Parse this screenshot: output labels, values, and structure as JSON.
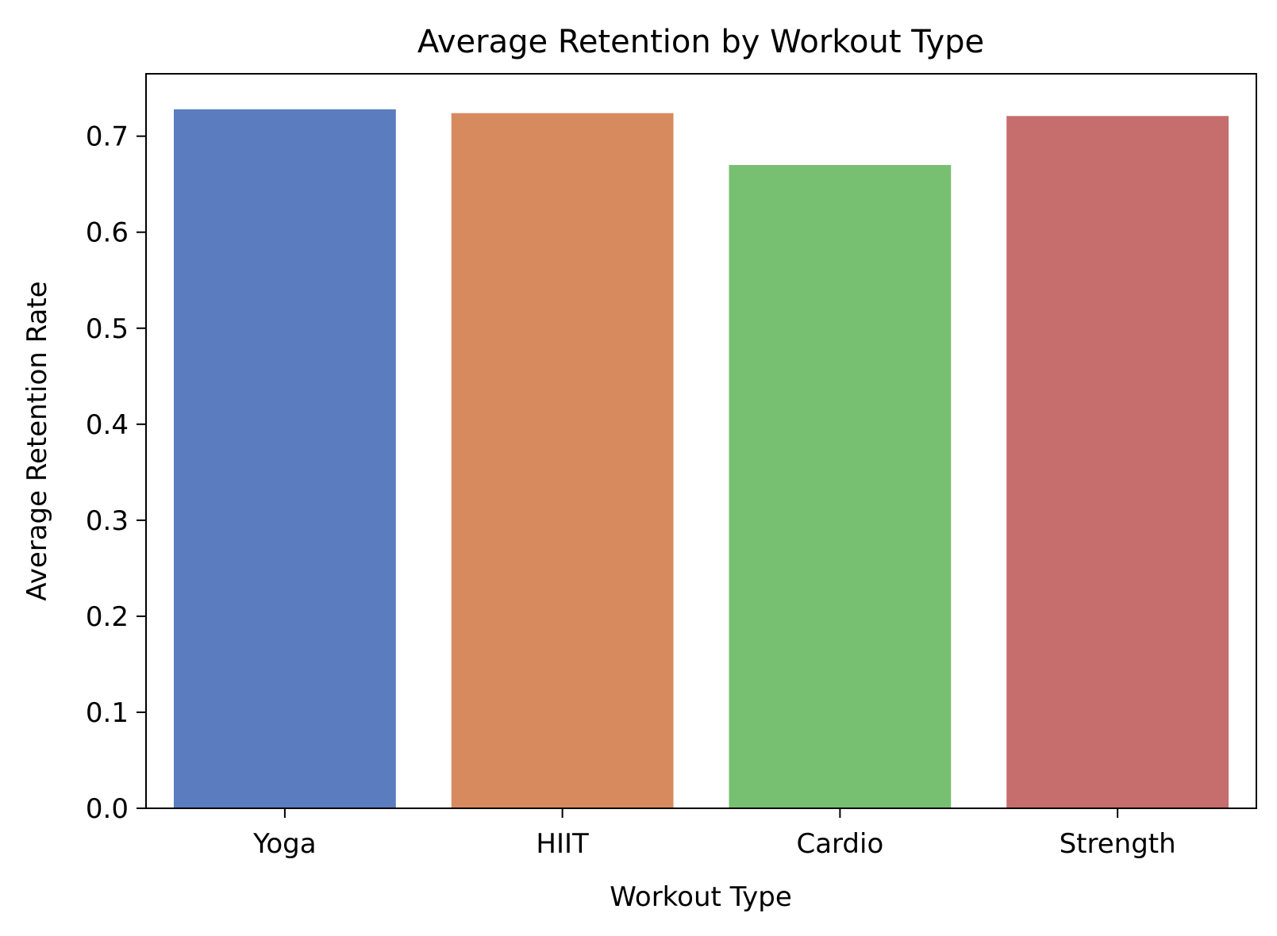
{
  "chart_data": {
    "type": "bar",
    "title": "Average Retention by Workout Type",
    "xlabel": "Workout Type",
    "ylabel": "Average Retention Rate",
    "categories": [
      "Yoga",
      "HIIT",
      "Cardio",
      "Strength"
    ],
    "values": [
      0.728,
      0.724,
      0.67,
      0.721
    ],
    "colors": [
      "#5b7cbe",
      "#d88a5f",
      "#77bf71",
      "#c56e6d"
    ],
    "ylim": [
      0,
      0.765
    ],
    "yticks": [
      {
        "value": 0.0,
        "label": "0.0"
      },
      {
        "value": 0.1,
        "label": "0.1"
      },
      {
        "value": 0.2,
        "label": "0.2"
      },
      {
        "value": 0.3,
        "label": "0.3"
      },
      {
        "value": 0.4,
        "label": "0.4"
      },
      {
        "value": 0.5,
        "label": "0.5"
      },
      {
        "value": 0.6,
        "label": "0.6"
      },
      {
        "value": 0.7,
        "label": "0.7"
      }
    ],
    "grid": false,
    "legend": "none"
  }
}
